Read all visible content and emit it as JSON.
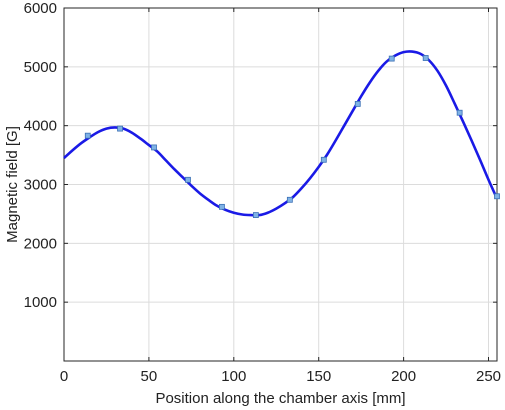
{
  "chart_data": {
    "type": "line",
    "title": "",
    "xlabel": "Position along the chamber axis [mm]",
    "ylabel": "Magnetic field [G]",
    "xlim": [
      0,
      255
    ],
    "ylim": [
      0,
      6000
    ],
    "x_ticks": [
      0,
      50,
      100,
      150,
      200,
      250
    ],
    "y_ticks": [
      1000,
      2000,
      3000,
      4000,
      5000,
      6000
    ],
    "grid": true,
    "series": [
      {
        "line_color": "#1a1ae6",
        "marker_color": "#7fb2e5",
        "curve": {
          "x": [
            0,
            5,
            10,
            15,
            20,
            25,
            30,
            35,
            40,
            45,
            50,
            55,
            60,
            65,
            70,
            75,
            80,
            85,
            90,
            95,
            100,
            105,
            110,
            115,
            120,
            125,
            130,
            135,
            140,
            145,
            150,
            155,
            160,
            165,
            170,
            175,
            180,
            185,
            190,
            195,
            200,
            205,
            210,
            215,
            220,
            225,
            230,
            235,
            240,
            245,
            250,
            255
          ],
          "y": [
            3450,
            3580,
            3700,
            3800,
            3890,
            3950,
            3970,
            3950,
            3880,
            3780,
            3670,
            3560,
            3410,
            3260,
            3120,
            2980,
            2850,
            2740,
            2640,
            2570,
            2520,
            2490,
            2480,
            2480,
            2520,
            2590,
            2680,
            2790,
            2940,
            3110,
            3300,
            3510,
            3750,
            4000,
            4250,
            4500,
            4730,
            4930,
            5090,
            5190,
            5250,
            5260,
            5220,
            5110,
            4930,
            4680,
            4380,
            4070,
            3750,
            3420,
            3080,
            2760
          ]
        },
        "markers": {
          "x": [
            14,
            33,
            53,
            73,
            93,
            113,
            133,
            153,
            173,
            193,
            213,
            233,
            255
          ],
          "y": [
            3830,
            3950,
            3630,
            3080,
            2620,
            2480,
            2740,
            3420,
            4370,
            5140,
            5150,
            4220,
            2800
          ]
        }
      }
    ]
  }
}
